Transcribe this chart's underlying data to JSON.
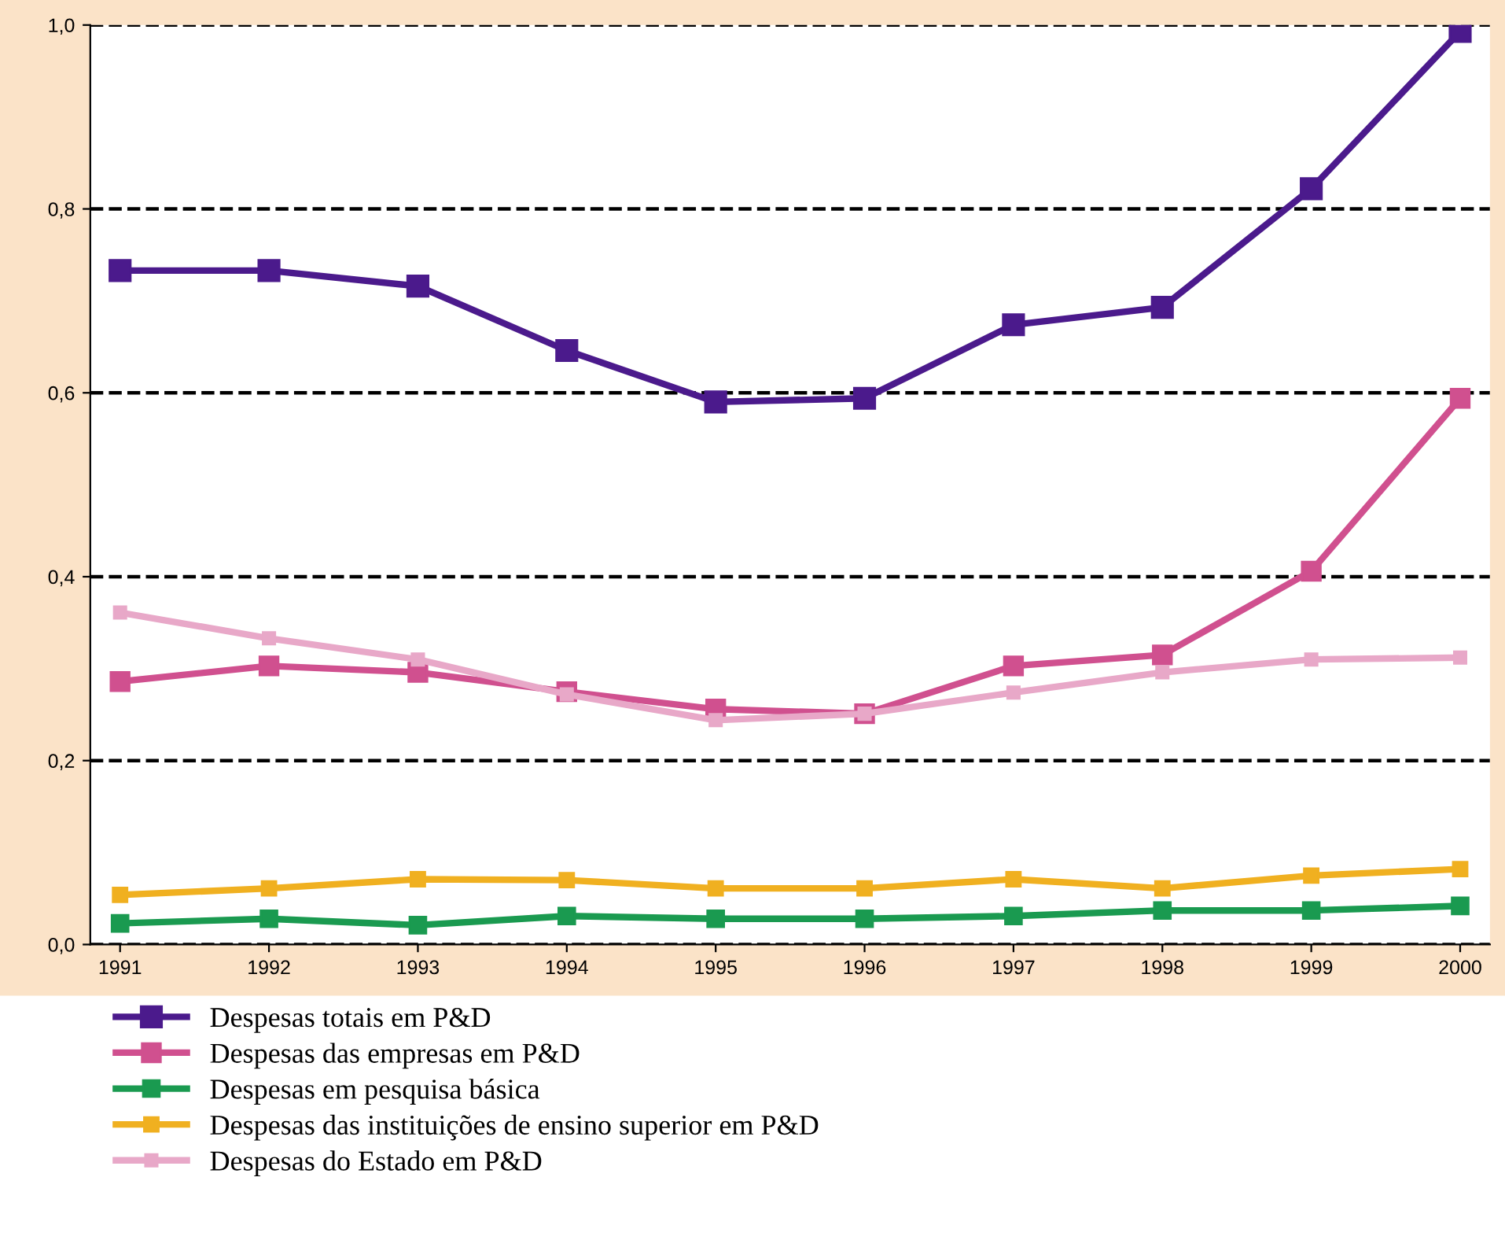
{
  "chart_data": {
    "type": "line",
    "categories": [
      "1991",
      "1992",
      "1993",
      "1994",
      "1995",
      "1996",
      "1997",
      "1998",
      "1999",
      "2000"
    ],
    "series": [
      {
        "name": "Despesas totais em P&D",
        "color": "#4b1a8c",
        "values": [
          0.733,
          0.733,
          0.716,
          0.646,
          0.59,
          0.594,
          0.674,
          0.693,
          0.822,
          0.993
        ]
      },
      {
        "name": "Despesas das empresas em P&D",
        "color": "#d0508f",
        "values": [
          0.286,
          0.303,
          0.296,
          0.275,
          0.256,
          0.251,
          0.303,
          0.315,
          0.406,
          0.594
        ]
      },
      {
        "name": "Despesas em pesquisa básica",
        "color": "#1a9a50",
        "values": [
          0.023,
          0.028,
          0.021,
          0.031,
          0.028,
          0.028,
          0.031,
          0.037,
          0.037,
          0.042
        ]
      },
      {
        "name": "Despesas das instituições de ensino superior em P&D",
        "color": "#f0b020",
        "values": [
          0.054,
          0.061,
          0.071,
          0.07,
          0.061,
          0.061,
          0.071,
          0.061,
          0.075,
          0.082
        ]
      },
      {
        "name": "Despesas do Estado em P&D",
        "color": "#e8a8c8",
        "values": [
          0.361,
          0.333,
          0.31,
          0.272,
          0.244,
          0.251,
          0.274,
          0.296,
          0.31,
          0.312
        ]
      }
    ],
    "ylim": [
      0,
      1.0
    ],
    "yticks": [
      {
        "value": 0,
        "label": "0,0"
      },
      {
        "value": 0.2,
        "label": "0,2"
      },
      {
        "value": 0.4,
        "label": "0,4"
      },
      {
        "value": 0.6,
        "label": "0,6"
      },
      {
        "value": 0.8,
        "label": "0,8"
      },
      {
        "value": 1.0,
        "label": "1,0"
      }
    ],
    "grid": "y",
    "legend": "bottom",
    "marker": "square",
    "line_style": "solid"
  }
}
